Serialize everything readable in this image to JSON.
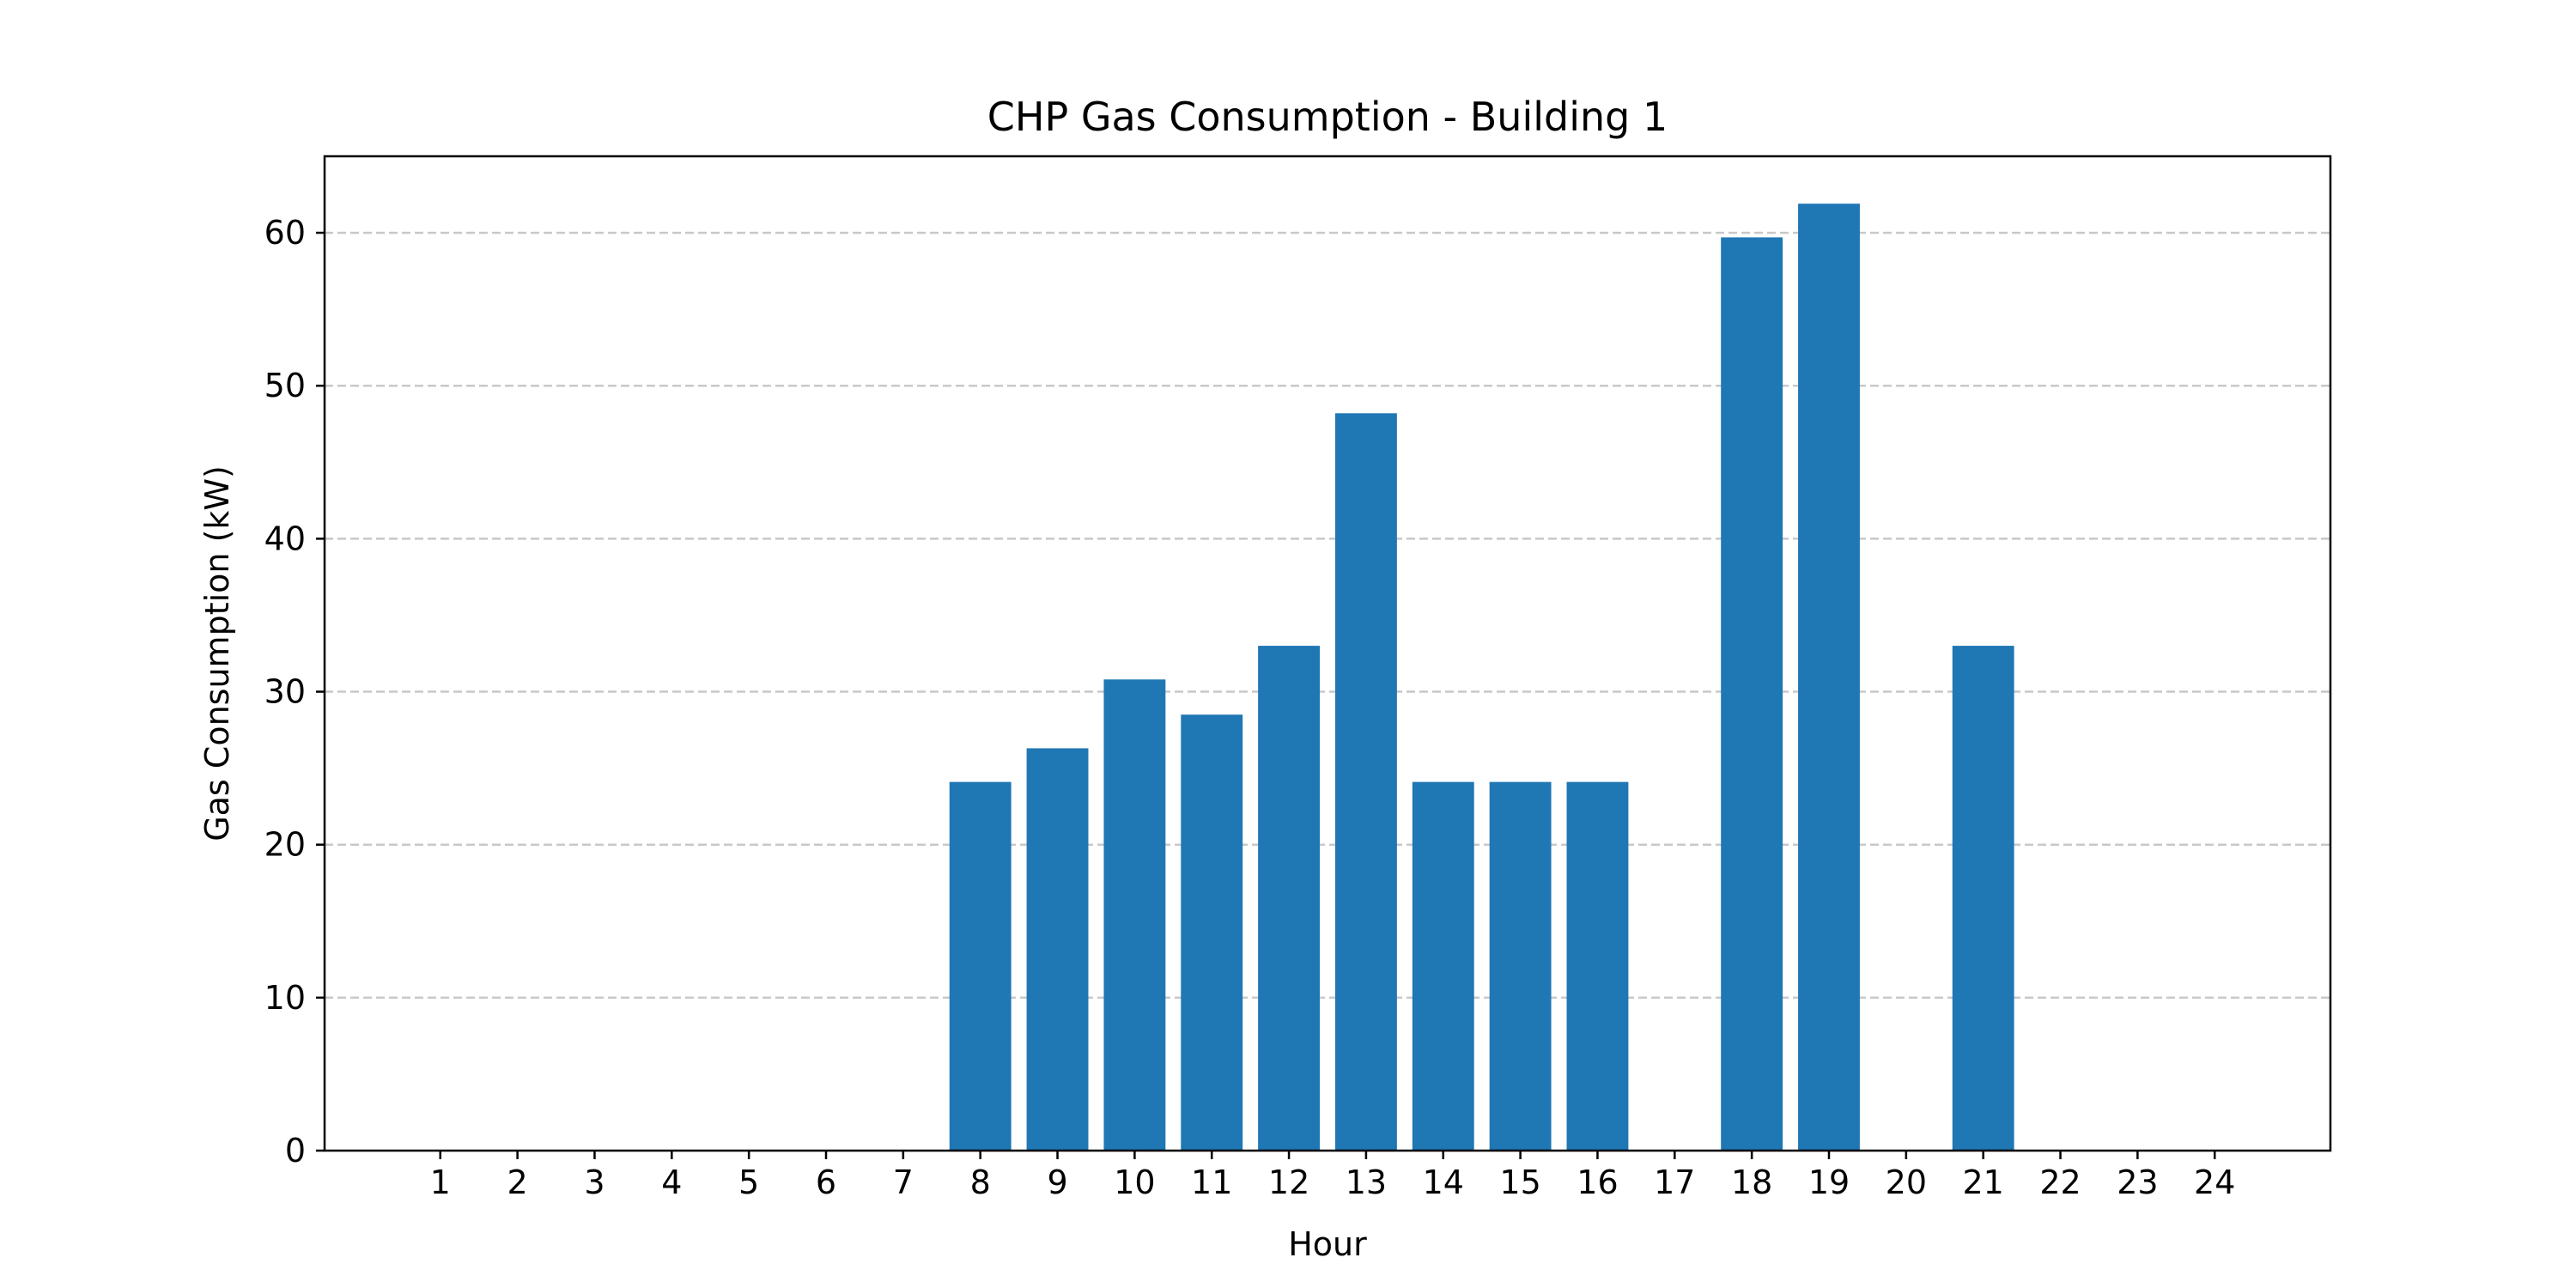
{
  "chart_data": {
    "type": "bar",
    "title": "CHP Gas Consumption - Building 1",
    "xlabel": "Hour",
    "ylabel": "Gas Consumption (kW)",
    "categories": [
      "1",
      "2",
      "3",
      "4",
      "5",
      "6",
      "7",
      "8",
      "9",
      "10",
      "11",
      "12",
      "13",
      "14",
      "15",
      "16",
      "17",
      "18",
      "19",
      "20",
      "21",
      "22",
      "23",
      "24"
    ],
    "values": [
      0,
      0,
      0,
      0,
      0,
      0,
      0,
      24.1,
      26.3,
      30.8,
      28.5,
      33.0,
      48.2,
      24.1,
      24.1,
      24.1,
      0,
      59.7,
      61.9,
      0,
      33.0,
      0,
      0,
      0
    ],
    "ylim": [
      0,
      65
    ],
    "yticks": [
      0,
      10,
      20,
      30,
      40,
      50,
      60
    ],
    "xlim": [
      -0.5,
      25.5
    ],
    "grid": "y-dashed",
    "colors": {
      "bar": "#1f77b4",
      "grid": "#c8c8c8",
      "axis": "#000000"
    }
  }
}
